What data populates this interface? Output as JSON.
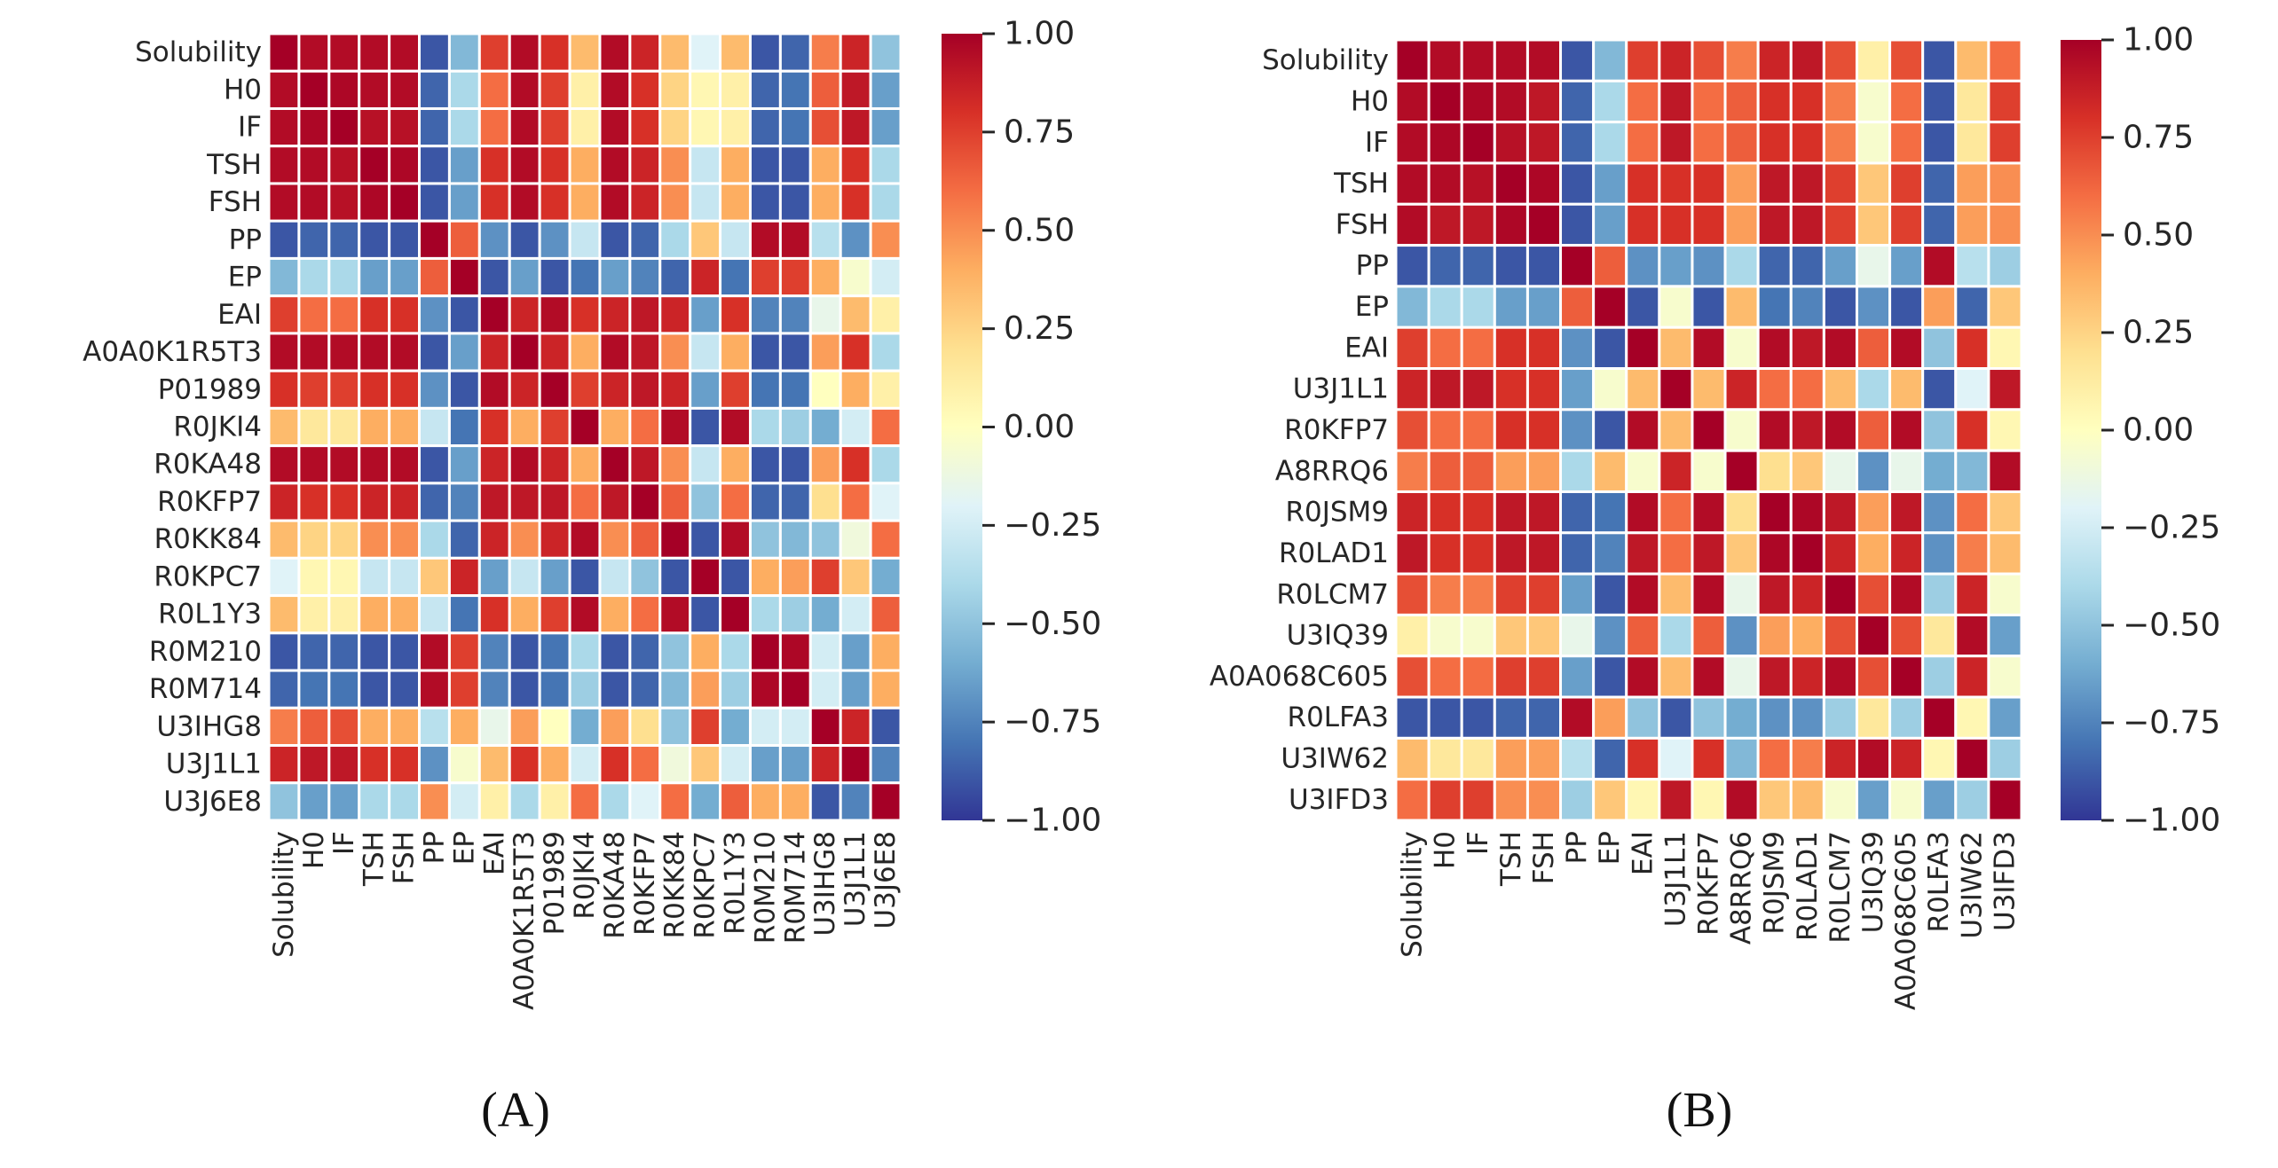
{
  "chart_data": [
    {
      "type": "heatmap",
      "caption": "(A)",
      "labels": [
        "Solubility",
        "H0",
        "IF",
        "TSH",
        "FSH",
        "PP",
        "EP",
        "EAI",
        "A0A0K1R5T3",
        "P01989",
        "R0JKI4",
        "R0KA48",
        "R0KFP7",
        "R0KK84",
        "R0KPC7",
        "R0L1Y3",
        "R0M210",
        "R0M714",
        "U3IHG8",
        "U3J1L1",
        "U3J6E8"
      ],
      "colorbar": {
        "range": [
          -1,
          1
        ],
        "ticks": [
          "1.00",
          "0.75",
          "0.50",
          "0.25",
          "0.00",
          "−0.25",
          "−0.50",
          "−0.75",
          "−1.00"
        ],
        "colormap": "RdYlBu_r"
      },
      "values": [
        [
          1,
          0.95,
          0.95,
          0.95,
          0.95,
          -0.9,
          -0.55,
          0.75,
          0.95,
          0.8,
          0.35,
          0.95,
          0.85,
          0.35,
          -0.2,
          0.35,
          -0.9,
          -0.85,
          0.55,
          0.85,
          -0.5
        ],
        [
          0.95,
          1,
          0.97,
          0.95,
          0.95,
          -0.85,
          -0.4,
          0.6,
          0.95,
          0.75,
          0.1,
          0.95,
          0.8,
          0.25,
          0.05,
          0.1,
          -0.85,
          -0.8,
          0.65,
          0.9,
          -0.65
        ],
        [
          0.95,
          0.97,
          1,
          0.93,
          0.93,
          -0.85,
          -0.4,
          0.6,
          0.95,
          0.75,
          0.1,
          0.95,
          0.8,
          0.25,
          0.05,
          0.1,
          -0.85,
          -0.8,
          0.7,
          0.9,
          -0.65
        ],
        [
          0.95,
          0.95,
          0.93,
          1,
          0.97,
          -0.9,
          -0.65,
          0.8,
          0.95,
          0.8,
          0.4,
          0.95,
          0.85,
          0.5,
          -0.3,
          0.4,
          -0.9,
          -0.9,
          0.4,
          0.8,
          -0.4
        ],
        [
          0.95,
          0.95,
          0.93,
          0.97,
          1,
          -0.9,
          -0.65,
          0.8,
          0.95,
          0.8,
          0.4,
          0.95,
          0.85,
          0.5,
          -0.3,
          0.4,
          -0.9,
          -0.9,
          0.4,
          0.8,
          -0.4
        ],
        [
          -0.9,
          -0.85,
          -0.85,
          -0.9,
          -0.9,
          1,
          0.65,
          -0.7,
          -0.9,
          -0.7,
          -0.3,
          -0.9,
          -0.85,
          -0.4,
          0.3,
          -0.3,
          0.95,
          0.95,
          -0.35,
          -0.7,
          0.5
        ],
        [
          -0.55,
          -0.4,
          -0.4,
          -0.65,
          -0.65,
          0.65,
          1,
          -0.9,
          -0.65,
          -0.9,
          -0.8,
          -0.65,
          -0.75,
          -0.85,
          0.85,
          -0.8,
          0.75,
          0.75,
          0.4,
          -0.05,
          -0.25
        ],
        [
          0.75,
          0.6,
          0.6,
          0.8,
          0.8,
          -0.7,
          -0.9,
          1,
          0.85,
          0.95,
          0.8,
          0.85,
          0.9,
          0.85,
          -0.65,
          0.8,
          -0.75,
          -0.75,
          -0.15,
          0.35,
          0.1
        ],
        [
          0.95,
          0.95,
          0.95,
          0.95,
          0.95,
          -0.9,
          -0.65,
          0.85,
          1,
          0.85,
          0.4,
          0.95,
          0.9,
          0.5,
          -0.3,
          0.4,
          -0.9,
          -0.9,
          0.45,
          0.8,
          -0.4
        ],
        [
          0.8,
          0.75,
          0.75,
          0.8,
          0.8,
          -0.7,
          -0.9,
          0.95,
          0.85,
          1,
          0.75,
          0.85,
          0.9,
          0.85,
          -0.65,
          0.75,
          -0.8,
          -0.8,
          0,
          0.4,
          0.1
        ],
        [
          0.35,
          0.15,
          0.15,
          0.4,
          0.4,
          -0.3,
          -0.8,
          0.8,
          0.4,
          0.75,
          1,
          0.4,
          0.6,
          0.95,
          -0.9,
          0.95,
          -0.4,
          -0.45,
          -0.6,
          -0.25,
          0.6
        ],
        [
          0.95,
          0.95,
          0.95,
          0.95,
          0.95,
          -0.9,
          -0.65,
          0.85,
          0.95,
          0.85,
          0.4,
          1,
          0.9,
          0.5,
          -0.3,
          0.4,
          -0.9,
          -0.9,
          0.45,
          0.8,
          -0.4
        ],
        [
          0.85,
          0.8,
          0.8,
          0.85,
          0.85,
          -0.85,
          -0.75,
          0.9,
          0.9,
          0.9,
          0.6,
          0.9,
          1,
          0.65,
          -0.5,
          0.6,
          -0.85,
          -0.85,
          0.2,
          0.6,
          -0.2
        ],
        [
          0.35,
          0.25,
          0.25,
          0.5,
          0.5,
          -0.4,
          -0.85,
          0.85,
          0.5,
          0.85,
          0.95,
          0.5,
          0.65,
          1,
          -0.9,
          0.95,
          -0.5,
          -0.55,
          -0.5,
          -0.1,
          0.6
        ],
        [
          -0.2,
          0.05,
          0.05,
          -0.3,
          -0.3,
          0.3,
          0.85,
          -0.65,
          -0.3,
          -0.65,
          -0.9,
          -0.3,
          -0.5,
          -0.9,
          1,
          -0.9,
          0.4,
          0.45,
          0.75,
          0.3,
          -0.6
        ],
        [
          0.35,
          0.1,
          0.1,
          0.4,
          0.4,
          -0.3,
          -0.8,
          0.8,
          0.4,
          0.75,
          0.95,
          0.4,
          0.6,
          0.95,
          -0.9,
          1,
          -0.4,
          -0.45,
          -0.6,
          -0.25,
          0.65
        ],
        [
          -0.9,
          -0.85,
          -0.85,
          -0.9,
          -0.9,
          0.95,
          0.75,
          -0.75,
          -0.9,
          -0.8,
          -0.4,
          -0.9,
          -0.85,
          -0.5,
          0.4,
          -0.4,
          1,
          0.97,
          -0.25,
          -0.65,
          0.4
        ],
        [
          -0.85,
          -0.8,
          -0.8,
          -0.9,
          -0.9,
          0.95,
          0.75,
          -0.75,
          -0.9,
          -0.8,
          -0.45,
          -0.9,
          -0.85,
          -0.55,
          0.45,
          -0.45,
          0.97,
          1,
          -0.25,
          -0.65,
          0.4
        ],
        [
          0.55,
          0.65,
          0.7,
          0.4,
          0.4,
          -0.35,
          0.4,
          -0.15,
          0.45,
          0,
          -0.6,
          0.45,
          0.2,
          -0.5,
          0.75,
          -0.6,
          -0.25,
          -0.25,
          1,
          0.85,
          -0.9
        ],
        [
          0.85,
          0.9,
          0.9,
          0.8,
          0.8,
          -0.7,
          -0.05,
          0.35,
          0.8,
          0.4,
          -0.25,
          0.8,
          0.6,
          -0.1,
          0.3,
          -0.25,
          -0.65,
          -0.65,
          0.85,
          1,
          -0.75
        ],
        [
          -0.5,
          -0.65,
          -0.65,
          -0.4,
          -0.4,
          0.5,
          -0.25,
          0.1,
          -0.4,
          0.1,
          0.6,
          -0.4,
          -0.2,
          0.6,
          -0.6,
          0.65,
          0.4,
          0.4,
          -0.9,
          -0.75,
          1
        ]
      ]
    },
    {
      "type": "heatmap",
      "caption": "(B)",
      "labels": [
        "Solubility",
        "H0",
        "IF",
        "TSH",
        "FSH",
        "PP",
        "EP",
        "EAI",
        "U3J1L1",
        "R0KFP7",
        "A8RRQ6",
        "R0JSM9",
        "R0LAD1",
        "R0LCM7",
        "U3IQ39",
        "A0A068C605",
        "R0LFA3",
        "U3IW62",
        "U3IFD3"
      ],
      "colorbar": {
        "range": [
          -1,
          1
        ],
        "ticks": [
          "1.00",
          "0.75",
          "0.50",
          "0.25",
          "0.00",
          "−0.25",
          "−0.50",
          "−0.75",
          "−1.00"
        ],
        "colormap": "RdYlBu_r"
      },
      "values": [
        [
          1,
          0.95,
          0.95,
          0.95,
          0.95,
          -0.9,
          -0.55,
          0.75,
          0.85,
          0.7,
          0.55,
          0.85,
          0.9,
          0.7,
          0.1,
          0.7,
          -0.9,
          0.35,
          0.6
        ],
        [
          0.95,
          1,
          0.97,
          0.95,
          0.9,
          -0.85,
          -0.4,
          0.6,
          0.9,
          0.6,
          0.65,
          0.8,
          0.8,
          0.55,
          -0.05,
          0.6,
          -0.9,
          0.15,
          0.75
        ],
        [
          0.95,
          0.97,
          1,
          0.93,
          0.9,
          -0.85,
          -0.4,
          0.6,
          0.9,
          0.6,
          0.65,
          0.8,
          0.8,
          0.55,
          -0.05,
          0.6,
          -0.9,
          0.15,
          0.75
        ],
        [
          0.95,
          0.95,
          0.93,
          1,
          0.97,
          -0.9,
          -0.65,
          0.8,
          0.8,
          0.8,
          0.45,
          0.9,
          0.9,
          0.75,
          0.3,
          0.75,
          -0.85,
          0.45,
          0.5
        ],
        [
          0.95,
          0.9,
          0.9,
          0.97,
          1,
          -0.9,
          -0.65,
          0.8,
          0.8,
          0.8,
          0.45,
          0.9,
          0.9,
          0.75,
          0.3,
          0.75,
          -0.85,
          0.45,
          0.5
        ],
        [
          -0.9,
          -0.85,
          -0.85,
          -0.9,
          -0.9,
          1,
          0.65,
          -0.7,
          -0.65,
          -0.7,
          -0.4,
          -0.85,
          -0.85,
          -0.65,
          -0.15,
          -0.65,
          0.95,
          -0.35,
          -0.45
        ],
        [
          -0.55,
          -0.4,
          -0.4,
          -0.65,
          -0.65,
          0.65,
          1,
          -0.9,
          -0.05,
          -0.9,
          0.35,
          -0.8,
          -0.75,
          -0.9,
          -0.7,
          -0.9,
          0.45,
          -0.85,
          0.3
        ],
        [
          0.75,
          0.6,
          0.6,
          0.8,
          0.8,
          -0.7,
          -0.9,
          1,
          0.35,
          0.95,
          -0.05,
          0.95,
          0.9,
          0.95,
          0.65,
          0.95,
          -0.5,
          0.8,
          0.05
        ],
        [
          0.85,
          0.9,
          0.9,
          0.8,
          0.8,
          -0.65,
          -0.05,
          0.35,
          1,
          0.35,
          0.85,
          0.6,
          0.6,
          0.35,
          -0.4,
          0.35,
          -0.9,
          -0.2,
          0.9
        ],
        [
          0.7,
          0.6,
          0.6,
          0.8,
          0.8,
          -0.7,
          -0.9,
          0.95,
          0.35,
          1,
          -0.05,
          0.95,
          0.9,
          0.95,
          0.65,
          0.95,
          -0.5,
          0.8,
          0.05
        ],
        [
          0.55,
          0.65,
          0.65,
          0.45,
          0.45,
          -0.4,
          0.35,
          -0.05,
          0.85,
          -0.05,
          1,
          0.2,
          0.3,
          -0.15,
          -0.7,
          -0.15,
          -0.6,
          -0.55,
          0.95
        ],
        [
          0.85,
          0.8,
          0.8,
          0.9,
          0.9,
          -0.85,
          -0.8,
          0.95,
          0.6,
          0.95,
          0.2,
          1,
          0.97,
          0.9,
          0.45,
          0.9,
          -0.7,
          0.6,
          0.3
        ],
        [
          0.9,
          0.8,
          0.8,
          0.9,
          0.9,
          -0.85,
          -0.75,
          0.9,
          0.6,
          0.9,
          0.3,
          0.97,
          1,
          0.85,
          0.4,
          0.85,
          -0.7,
          0.55,
          0.35
        ],
        [
          0.7,
          0.55,
          0.55,
          0.75,
          0.75,
          -0.65,
          -0.9,
          0.95,
          0.35,
          0.95,
          -0.15,
          0.9,
          0.85,
          1,
          0.7,
          0.95,
          -0.45,
          0.85,
          -0.05
        ],
        [
          0.1,
          -0.05,
          -0.05,
          0.3,
          0.3,
          -0.15,
          -0.7,
          0.65,
          -0.4,
          0.65,
          -0.7,
          0.45,
          0.4,
          0.7,
          1,
          0.7,
          0.15,
          0.95,
          -0.65
        ],
        [
          0.7,
          0.6,
          0.6,
          0.75,
          0.75,
          -0.65,
          -0.9,
          0.95,
          0.35,
          0.95,
          -0.15,
          0.9,
          0.85,
          0.95,
          0.7,
          1,
          -0.45,
          0.85,
          -0.05
        ],
        [
          -0.9,
          -0.9,
          -0.9,
          -0.85,
          -0.85,
          0.95,
          0.45,
          -0.5,
          -0.9,
          -0.5,
          -0.6,
          -0.7,
          -0.7,
          -0.45,
          0.15,
          -0.45,
          1,
          0.05,
          -0.65
        ],
        [
          0.35,
          0.15,
          0.15,
          0.45,
          0.45,
          -0.35,
          -0.85,
          0.8,
          -0.2,
          0.8,
          -0.55,
          0.6,
          0.55,
          0.85,
          0.95,
          0.85,
          0.05,
          1,
          -0.45
        ],
        [
          0.6,
          0.75,
          0.75,
          0.5,
          0.5,
          -0.45,
          0.3,
          0.05,
          0.9,
          0.05,
          0.95,
          0.3,
          0.35,
          -0.05,
          -0.65,
          -0.05,
          -0.65,
          -0.45,
          1
        ]
      ]
    }
  ]
}
